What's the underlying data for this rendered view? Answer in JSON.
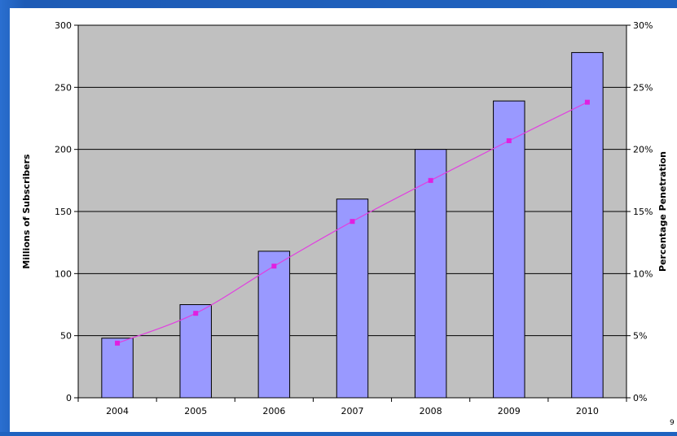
{
  "chart_data": {
    "type": "bar",
    "categories": [
      "2004",
      "2005",
      "2006",
      "2007",
      "2008",
      "2009",
      "2010"
    ],
    "series": [
      {
        "type": "bar",
        "axis": "left",
        "values": [
          48,
          75,
          118,
          160,
          200,
          239,
          278
        ]
      },
      {
        "type": "line",
        "axis": "right",
        "values": [
          4.4,
          6.8,
          10.6,
          14.2,
          17.5,
          20.7,
          23.8
        ]
      }
    ],
    "ylabel": "Millions of Subscribers",
    "y2label": "Percentage Penetration",
    "ylim": [
      0,
      300
    ],
    "y2lim": [
      0,
      30
    ],
    "yticks": [
      "0",
      "50",
      "100",
      "150",
      "200",
      "250",
      "300"
    ],
    "y2ticks": [
      "0%",
      "5%",
      "10%",
      "15%",
      "20%",
      "25%",
      "30%"
    ],
    "grid": true,
    "colors": {
      "plot_bg": "#c0c0c0",
      "bar_fill": "#9999ff",
      "bar_stroke": "#000000",
      "line": "#e040e0",
      "marker": "#e020e0",
      "slide_bg": "#1f63c0"
    }
  },
  "footer": {
    "corner_text": "9"
  }
}
